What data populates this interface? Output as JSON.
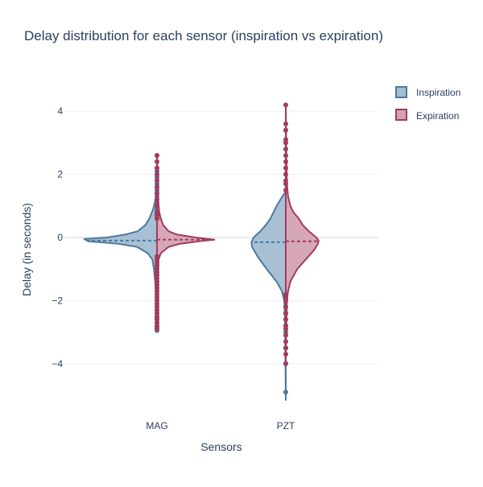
{
  "chart_data": {
    "type": "violin",
    "title": "Delay distribution for each sensor (inspiration vs expiration)",
    "xlabel": "Sensors",
    "ylabel": "Delay (in seconds)",
    "categories": [
      "MAG",
      "PZT"
    ],
    "ylim": [
      -5.6,
      4.6
    ],
    "yticks": [
      -4,
      -2,
      0,
      2,
      4
    ],
    "ytick_labels": [
      "−4",
      "−2",
      "0",
      "2",
      "4"
    ],
    "grid": true,
    "legend_position": "top-right",
    "series": [
      {
        "name": "Inspiration",
        "side": "negative",
        "color": "#4a7aa0",
        "fill": "#a3bdd1",
        "violins": {
          "MAG": {
            "median": -0.1,
            "min": -2.95,
            "max": 2.25,
            "profile": [
              [
                -2.95,
                0.0
              ],
              [
                -2.6,
                0.005
              ],
              [
                -2.0,
                0.01
              ],
              [
                -1.5,
                0.02
              ],
              [
                -1.0,
                0.04
              ],
              [
                -0.7,
                0.06
              ],
              [
                -0.5,
                0.12
              ],
              [
                -0.3,
                0.26
              ],
              [
                -0.2,
                0.5
              ],
              [
                -0.12,
                0.9
              ],
              [
                -0.05,
                0.95
              ],
              [
                0.0,
                0.65
              ],
              [
                0.1,
                0.4
              ],
              [
                0.2,
                0.25
              ],
              [
                0.4,
                0.15
              ],
              [
                0.6,
                0.1
              ],
              [
                0.9,
                0.05
              ],
              [
                1.2,
                0.02
              ],
              [
                1.5,
                0.01
              ],
              [
                2.0,
                0.005
              ],
              [
                2.25,
                0.0
              ]
            ],
            "points": [
              -2.95,
              -2.9,
              -2.85,
              -2.8,
              -2.7,
              -2.6,
              -2.55,
              -2.5,
              -2.4,
              -2.3,
              -2.2,
              -2.1,
              -2.0,
              -1.9,
              -1.8,
              -1.7,
              -1.6,
              -1.5,
              -1.4,
              -1.3,
              -1.2,
              -1.1,
              -1.0,
              -0.9,
              -0.8,
              -0.7,
              0.6,
              0.7,
              0.8,
              0.9,
              1.0,
              1.1,
              1.2,
              1.3,
              1.4,
              1.5,
              1.6,
              1.7,
              1.8,
              1.9,
              2.0,
              2.1,
              2.2
            ]
          },
          "PZT": {
            "median": -0.15,
            "min": -5.15,
            "max": 1.45,
            "profile": [
              [
                -5.15,
                0.0
              ],
              [
                -4.0,
                0.004
              ],
              [
                -3.0,
                0.008
              ],
              [
                -2.5,
                0.012
              ],
              [
                -2.0,
                0.02
              ],
              [
                -1.7,
                0.05
              ],
              [
                -1.4,
                0.12
              ],
              [
                -1.0,
                0.25
              ],
              [
                -0.6,
                0.37
              ],
              [
                -0.3,
                0.44
              ],
              [
                -0.15,
                0.45
              ],
              [
                0.0,
                0.42
              ],
              [
                0.2,
                0.33
              ],
              [
                0.4,
                0.26
              ],
              [
                0.6,
                0.2
              ],
              [
                0.8,
                0.16
              ],
              [
                1.0,
                0.12
              ],
              [
                1.2,
                0.07
              ],
              [
                1.35,
                0.03
              ],
              [
                1.45,
                0.0
              ]
            ],
            "points": [
              -4.9,
              -4.0,
              -3.5,
              -3.0,
              -2.8,
              -2.6,
              -2.4,
              -2.2,
              -2.0,
              -1.9
            ]
          }
        }
      },
      {
        "name": "Expiration",
        "side": "positive",
        "color": "#a23b5e",
        "fill": "#d4a2b4",
        "violins": {
          "MAG": {
            "median": -0.07,
            "min": -2.95,
            "max": 2.65,
            "profile": [
              [
                -2.95,
                0.0
              ],
              [
                -2.5,
                0.005
              ],
              [
                -1.5,
                0.01
              ],
              [
                -1.0,
                0.015
              ],
              [
                -0.7,
                0.02
              ],
              [
                -0.5,
                0.05
              ],
              [
                -0.3,
                0.15
              ],
              [
                -0.2,
                0.3
              ],
              [
                -0.12,
                0.55
              ],
              [
                -0.07,
                0.75
              ],
              [
                0.0,
                0.5
              ],
              [
                0.1,
                0.25
              ],
              [
                0.2,
                0.15
              ],
              [
                0.4,
                0.08
              ],
              [
                0.6,
                0.05
              ],
              [
                0.8,
                0.03
              ],
              [
                1.2,
                0.015
              ],
              [
                2.0,
                0.008
              ],
              [
                2.65,
                0.0
              ]
            ],
            "points": [
              -2.9,
              -2.8,
              -2.7,
              -2.6,
              -2.5,
              -2.4,
              -2.3,
              -2.2,
              -2.1,
              -2.0,
              -1.9,
              -1.8,
              -1.7,
              -1.6,
              -1.5,
              -1.4,
              -1.3,
              -1.2,
              -1.1,
              -1.0,
              -0.9,
              -0.8,
              -0.7,
              -0.6,
              0.6,
              0.7,
              0.8,
              1.0,
              1.2,
              1.4,
              1.6,
              1.8,
              2.0,
              2.2,
              2.4,
              2.6
            ]
          },
          "PZT": {
            "median": -0.12,
            "min": -4.0,
            "max": 4.2,
            "profile": [
              [
                -4.0,
                0.0
              ],
              [
                -3.0,
                0.005
              ],
              [
                -2.0,
                0.015
              ],
              [
                -1.7,
                0.03
              ],
              [
                -1.4,
                0.06
              ],
              [
                -1.0,
                0.15
              ],
              [
                -0.7,
                0.26
              ],
              [
                -0.4,
                0.37
              ],
              [
                -0.2,
                0.42
              ],
              [
                -0.1,
                0.43
              ],
              [
                0.0,
                0.4
              ],
              [
                0.2,
                0.3
              ],
              [
                0.4,
                0.22
              ],
              [
                0.6,
                0.17
              ],
              [
                0.8,
                0.1
              ],
              [
                1.0,
                0.06
              ],
              [
                1.3,
                0.03
              ],
              [
                1.7,
                0.015
              ],
              [
                2.5,
                0.008
              ],
              [
                4.2,
                0.0
              ]
            ],
            "points": [
              -4.0,
              -3.7,
              -3.5,
              -3.3,
              -3.1,
              -2.9,
              -2.8,
              -2.6,
              -2.4,
              -2.2,
              -2.0,
              -1.9,
              -1.8,
              1.5,
              1.7,
              1.8,
              2.0,
              2.2,
              2.4,
              2.6,
              2.8,
              3.0,
              3.1,
              3.4,
              3.6,
              4.2
            ]
          }
        }
      }
    ]
  }
}
